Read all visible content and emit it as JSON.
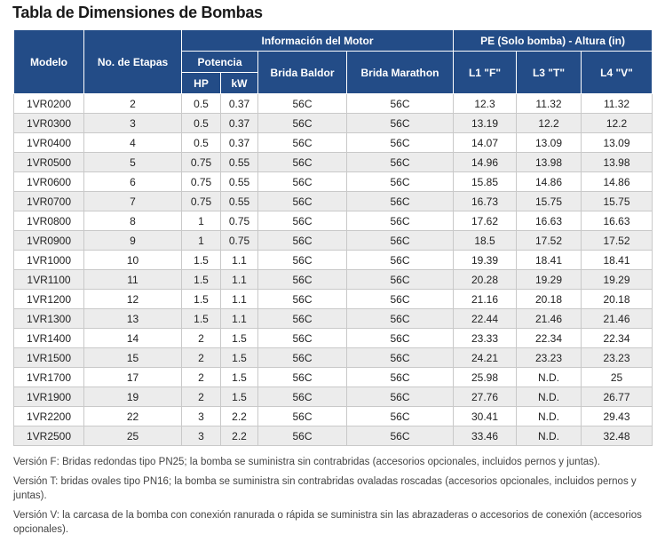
{
  "title": "Tabla de Dimensiones de Bombas",
  "headers": {
    "modelo": "Modelo",
    "etapas": "No. de Etapas",
    "motor_group": "Información del Motor",
    "potencia": "Potencia",
    "hp": "HP",
    "kw": "kW",
    "baldor": "Brida Baldor",
    "marathon": "Brida Marathon",
    "pe_group": "PE (Solo bomba) - Altura (in)",
    "l1": "L1 \"F\"",
    "l3": "L3 \"T\"",
    "l4": "L4 \"V\""
  },
  "rows": [
    [
      "1VR0200",
      "2",
      "0.5",
      "0.37",
      "56C",
      "56C",
      "12.3",
      "11.32",
      "11.32"
    ],
    [
      "1VR0300",
      "3",
      "0.5",
      "0.37",
      "56C",
      "56C",
      "13.19",
      "12.2",
      "12.2"
    ],
    [
      "1VR0400",
      "4",
      "0.5",
      "0.37",
      "56C",
      "56C",
      "14.07",
      "13.09",
      "13.09"
    ],
    [
      "1VR0500",
      "5",
      "0.75",
      "0.55",
      "56C",
      "56C",
      "14.96",
      "13.98",
      "13.98"
    ],
    [
      "1VR0600",
      "6",
      "0.75",
      "0.55",
      "56C",
      "56C",
      "15.85",
      "14.86",
      "14.86"
    ],
    [
      "1VR0700",
      "7",
      "0.75",
      "0.55",
      "56C",
      "56C",
      "16.73",
      "15.75",
      "15.75"
    ],
    [
      "1VR0800",
      "8",
      "1",
      "0.75",
      "56C",
      "56C",
      "17.62",
      "16.63",
      "16.63"
    ],
    [
      "1VR0900",
      "9",
      "1",
      "0.75",
      "56C",
      "56C",
      "18.5",
      "17.52",
      "17.52"
    ],
    [
      "1VR1000",
      "10",
      "1.5",
      "1.1",
      "56C",
      "56C",
      "19.39",
      "18.41",
      "18.41"
    ],
    [
      "1VR1100",
      "11",
      "1.5",
      "1.1",
      "56C",
      "56C",
      "20.28",
      "19.29",
      "19.29"
    ],
    [
      "1VR1200",
      "12",
      "1.5",
      "1.1",
      "56C",
      "56C",
      "21.16",
      "20.18",
      "20.18"
    ],
    [
      "1VR1300",
      "13",
      "1.5",
      "1.1",
      "56C",
      "56C",
      "22.44",
      "21.46",
      "21.46"
    ],
    [
      "1VR1400",
      "14",
      "2",
      "1.5",
      "56C",
      "56C",
      "23.33",
      "22.34",
      "22.34"
    ],
    [
      "1VR1500",
      "15",
      "2",
      "1.5",
      "56C",
      "56C",
      "24.21",
      "23.23",
      "23.23"
    ],
    [
      "1VR1700",
      "17",
      "2",
      "1.5",
      "56C",
      "56C",
      "25.98",
      "N.D.",
      "25"
    ],
    [
      "1VR1900",
      "19",
      "2",
      "1.5",
      "56C",
      "56C",
      "27.76",
      "N.D.",
      "26.77"
    ],
    [
      "1VR2200",
      "22",
      "3",
      "2.2",
      "56C",
      "56C",
      "30.41",
      "N.D.",
      "29.43"
    ],
    [
      "1VR2500",
      "25",
      "3",
      "2.2",
      "56C",
      "56C",
      "33.46",
      "N.D.",
      "32.48"
    ]
  ],
  "notes": [
    "Versión F: Bridas redondas tipo PN25; la bomba se suministra sin contrabridas (accesorios opcionales, incluidos pernos y juntas).",
    "Versión T: bridas ovales tipo PN16; la bomba se suministra sin contrabridas ovaladas roscadas (accesorios opcionales, incluidos pernos y juntas).",
    "Versión V: la carcasa de la bomba con conexión ranurada o rápida se suministra sin las abrazaderas o accesorios de conexión (accesorios opcionales)."
  ],
  "colors": {
    "header_bg": "#234c87",
    "row_alt": "#ececec"
  }
}
